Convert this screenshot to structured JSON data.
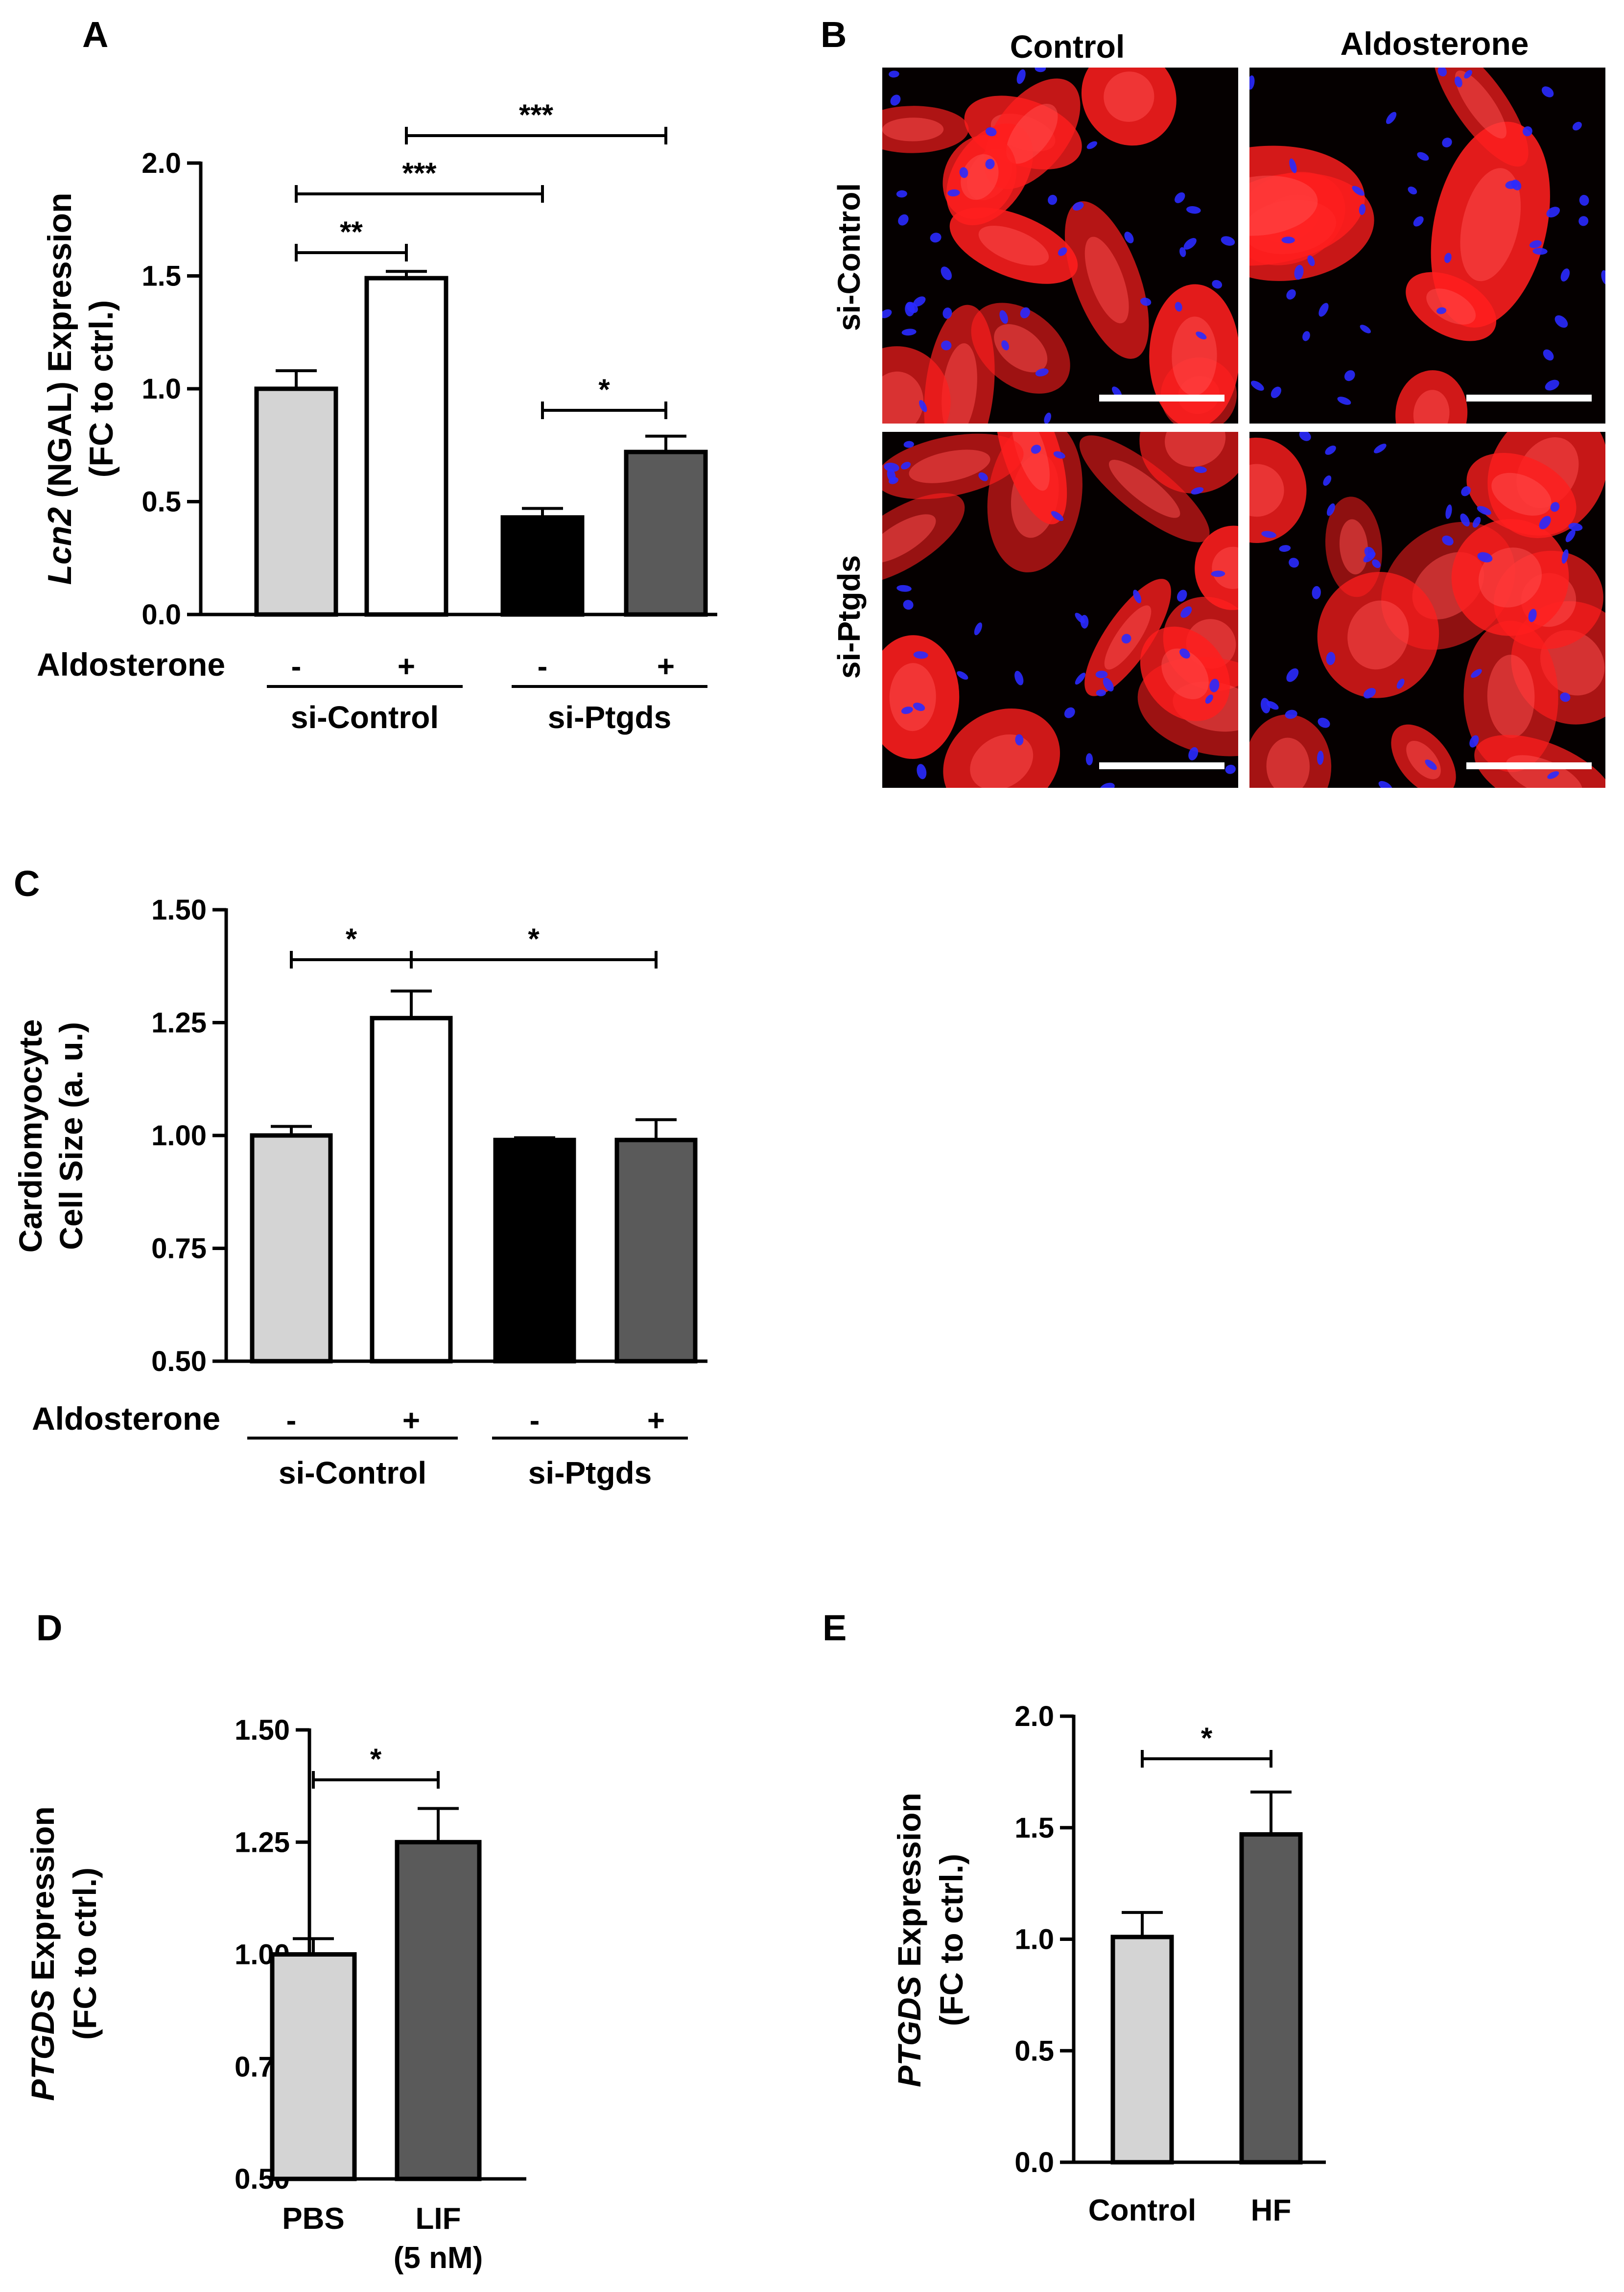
{
  "chart_data": [
    {
      "panel": "A",
      "type": "bar",
      "ylabel": [
        "Lcn2",
        " (NGAL) Expression",
        "(FC to ctrl.)"
      ],
      "ylabel_italic_part": "Lcn2",
      "ylim": [
        0,
        2.0
      ],
      "yticks": [
        "0.0",
        "0.5",
        "1.0",
        "1.5",
        "2.0"
      ],
      "row_label": "Aldosterone",
      "categories": [
        "-",
        "+",
        "-",
        "+"
      ],
      "groups": [
        "si-Control",
        "si-Ptgds"
      ],
      "values": [
        1.0,
        1.49,
        0.43,
        0.72
      ],
      "errors": [
        0.08,
        0.03,
        0.04,
        0.07
      ],
      "bar_colors": [
        "#d4d4d4",
        "#ffffff",
        "#000000",
        "#5a5a5a"
      ],
      "significance": [
        {
          "from": 0,
          "to": 1,
          "label": "**"
        },
        {
          "from": 0,
          "to": 2,
          "label": "***"
        },
        {
          "from": 1,
          "to": 3,
          "label": "***"
        },
        {
          "from": 2,
          "to": 3,
          "label": "*"
        }
      ]
    },
    {
      "panel": "C",
      "type": "bar",
      "ylabel": [
        "Cardiomyocyte",
        "Cell Size (a. u.)"
      ],
      "ylim": [
        0.5,
        1.5
      ],
      "yticks": [
        "0.50",
        "0.75",
        "1.00",
        "1.25",
        "1.50"
      ],
      "row_label": "Aldosterone",
      "categories": [
        "-",
        "+",
        "-",
        "+"
      ],
      "groups": [
        "si-Control",
        "si-Ptgds"
      ],
      "values": [
        1.0,
        1.26,
        0.99,
        0.99
      ],
      "errors": [
        0.02,
        0.06,
        0.005,
        0.045
      ],
      "bar_colors": [
        "#d4d4d4",
        "#ffffff",
        "#000000",
        "#5a5a5a"
      ],
      "significance": [
        {
          "from": 0,
          "to": 1,
          "label": "*"
        },
        {
          "from": 1,
          "to": 3,
          "label": "*"
        }
      ]
    },
    {
      "panel": "D",
      "type": "bar",
      "ylabel": [
        "PTGDS",
        " Expression",
        "(FC to ctrl.)"
      ],
      "ylabel_italic_part": "PTGDS",
      "ylim": [
        0.5,
        1.5
      ],
      "yticks": [
        "0.50",
        "0.75",
        "1.00",
        "1.25",
        "1.50"
      ],
      "categories": [
        "PBS",
        "LIF"
      ],
      "category_sublabels": [
        "",
        "(5 nM)"
      ],
      "values": [
        1.0,
        1.25
      ],
      "errors": [
        0.035,
        0.075
      ],
      "bar_colors": [
        "#d4d4d4",
        "#5a5a5a"
      ],
      "significance": [
        {
          "from": 0,
          "to": 1,
          "label": "*"
        }
      ]
    },
    {
      "panel": "E",
      "type": "bar",
      "ylabel": [
        "PTGDS",
        " Expression",
        "(FC to ctrl.)"
      ],
      "ylabel_italic_part": "PTGDS",
      "ylim": [
        0,
        2.0
      ],
      "yticks": [
        "0.0",
        "0.5",
        "1.0",
        "1.5",
        "2.0"
      ],
      "categories": [
        "Control",
        "HF"
      ],
      "values": [
        1.01,
        1.47
      ],
      "errors": [
        0.11,
        0.19
      ],
      "bar_colors": [
        "#d4d4d4",
        "#5a5a5a"
      ],
      "significance": [
        {
          "from": 0,
          "to": 1,
          "label": "*"
        }
      ]
    }
  ],
  "microscopy": {
    "panel": "B",
    "column_labels": [
      "Control",
      "Aldosterone"
    ],
    "row_labels": [
      "si-Control",
      "si-Ptgds"
    ],
    "stain_colors": [
      "#ff1e1e",
      "#2a2aff"
    ]
  },
  "panel_letters": [
    "A",
    "B",
    "C",
    "D",
    "E"
  ]
}
